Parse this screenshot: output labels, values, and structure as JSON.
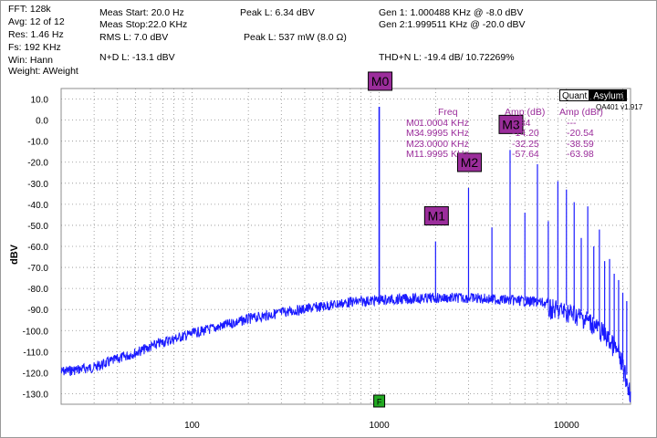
{
  "header": {
    "col1": [
      "FFT: 128k",
      "Avg: 12 of 12",
      "Res: 1.46 Hz",
      "Fs: 192 KHz",
      "Win: Hann",
      "Weight: AWeight"
    ],
    "meas_start": "Meas Start: 20.0 Hz",
    "meas_stop": "Meas Stop:22.0 KHz",
    "rms_l": "RMS L: 7.0 dBV",
    "nd_l": "N+D L: -13.1 dBV",
    "peak_l_dbv": "Peak L: 6.34 dBV",
    "peak_l_mw": "Peak L: 537 mW (8.0 Ω)",
    "gen1": "Gen 1: 1.000488 KHz @ -8.0  dBV",
    "gen2": "Gen 2:1.999511 KHz @ -20.0  dBV",
    "thd_n_l": "THD+N L: -19.4 dB/ 10.72269%"
  },
  "logo": {
    "quant": "Quant",
    "asylum": "Asylum",
    "version": "QA401 v1.917"
  },
  "markers_table": {
    "headers": [
      "Freq",
      "Amp (dB)",
      "Amp (dBr)"
    ],
    "rows": [
      {
        "name": "M0",
        "freq": "1.0004 KHz",
        "amp_db": "6.34",
        "amp_dbr": "---"
      },
      {
        "name": "M3",
        "freq": "4.9995 KHz",
        "amp_db": "-14.20",
        "amp_dbr": "-20.54"
      },
      {
        "name": "M2",
        "freq": "3.0000 KHz",
        "amp_db": "-32.25",
        "amp_dbr": "-38.59"
      },
      {
        "name": "M1",
        "freq": "1.9995 KHz",
        "amp_db": "-57.64",
        "amp_dbr": "-63.98"
      }
    ]
  },
  "colors": {
    "trace": "#1a1aff",
    "marker_bg": "#9b2d9b",
    "marker_text": "#9b2d9b",
    "grid": "#8c8c8c",
    "f_marker": "#22aa22"
  },
  "chart_data": {
    "type": "line",
    "x_scale": "log",
    "xlim": [
      20,
      22000
    ],
    "ylim": [
      -135,
      15
    ],
    "ylabel": "dBV",
    "xticks": [
      {
        "value": 100,
        "label": "100"
      },
      {
        "value": 1000,
        "label": "1000"
      },
      {
        "value": 10000,
        "label": "10000"
      }
    ],
    "yticks": [
      {
        "value": 10,
        "label": "10.0"
      },
      {
        "value": 0,
        "label": "0.0"
      },
      {
        "value": -10,
        "label": "-10.0"
      },
      {
        "value": -20,
        "label": "-20.0"
      },
      {
        "value": -30,
        "label": "-30.0"
      },
      {
        "value": -40,
        "label": "-40.0"
      },
      {
        "value": -50,
        "label": "-50.0"
      },
      {
        "value": -60,
        "label": "-60.0"
      },
      {
        "value": -70,
        "label": "-70.0"
      },
      {
        "value": -80,
        "label": "-80.0"
      },
      {
        "value": -90,
        "label": "-90.0"
      },
      {
        "value": -100,
        "label": "-100.0"
      },
      {
        "value": -110,
        "label": "-110.0"
      },
      {
        "value": -120,
        "label": "-120.0"
      },
      {
        "value": -130,
        "label": "-130.0"
      }
    ],
    "grid": true,
    "noise_floor": [
      [
        20,
        -117
      ],
      [
        30,
        -115
      ],
      [
        50,
        -108
      ],
      [
        70,
        -103
      ],
      [
        100,
        -99
      ],
      [
        150,
        -95
      ],
      [
        200,
        -92
      ],
      [
        300,
        -89
      ],
      [
        500,
        -86
      ],
      [
        700,
        -84
      ],
      [
        1000,
        -83
      ],
      [
        2000,
        -82
      ],
      [
        3000,
        -82
      ],
      [
        5000,
        -83
      ],
      [
        7000,
        -84
      ],
      [
        10000,
        -86
      ],
      [
        13000,
        -90
      ],
      [
        16000,
        -97
      ],
      [
        19000,
        -106
      ],
      [
        22000,
        -125
      ]
    ],
    "harmonics": [
      {
        "freq": 1000,
        "amp": 6.34
      },
      {
        "freq": 2000,
        "amp": -57.64
      },
      {
        "freq": 3000,
        "amp": -32.25
      },
      {
        "freq": 4000,
        "amp": -51
      },
      {
        "freq": 5000,
        "amp": -14.2
      },
      {
        "freq": 6000,
        "amp": -44
      },
      {
        "freq": 7000,
        "amp": -21
      },
      {
        "freq": 8000,
        "amp": -48
      },
      {
        "freq": 9000,
        "amp": -29
      },
      {
        "freq": 10000,
        "amp": -33
      },
      {
        "freq": 11000,
        "amp": -39
      },
      {
        "freq": 12000,
        "amp": -56
      },
      {
        "freq": 13000,
        "amp": -41
      },
      {
        "freq": 14000,
        "amp": -60
      },
      {
        "freq": 15000,
        "amp": -52
      },
      {
        "freq": 16000,
        "amp": -67
      },
      {
        "freq": 17000,
        "amp": -66
      },
      {
        "freq": 18000,
        "amp": -73
      },
      {
        "freq": 19000,
        "amp": -76
      },
      {
        "freq": 20000,
        "amp": -82
      },
      {
        "freq": 21000,
        "amp": -86
      }
    ],
    "markers": [
      {
        "label": "M0",
        "freq": 1000
      },
      {
        "label": "M1",
        "freq": 2000
      },
      {
        "label": "M2",
        "freq": 3000
      },
      {
        "label": "M3",
        "freq": 5000
      }
    ],
    "f_marker": {
      "label": "F",
      "freq": 1000
    }
  }
}
